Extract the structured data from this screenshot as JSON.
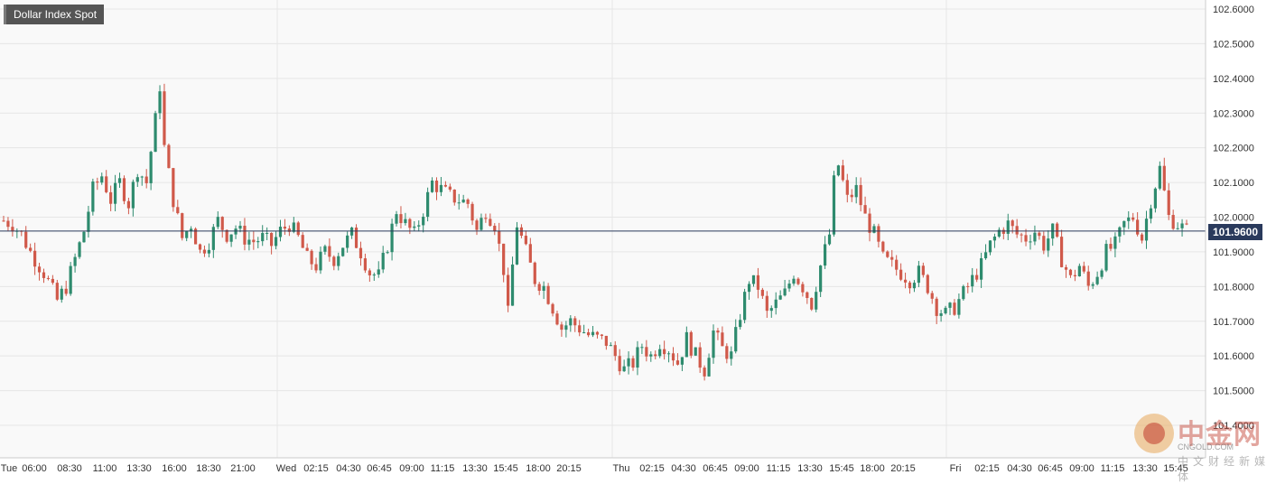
{
  "title": "Dollar Index Spot",
  "current_price": "101.9600",
  "watermark": {
    "brand": "中金网",
    "domain": "CNGOLD.COM",
    "tagline": "中文财经新媒体"
  },
  "colors": {
    "up": "#2e8b6e",
    "down": "#d0594a",
    "price_line": "#2a3a5c",
    "grid": "#e6e6e6",
    "background": "#f9f9f9"
  },
  "chart_data": {
    "type": "candlestick",
    "title": "Dollar Index Spot",
    "ylim": [
      101.4,
      102.6
    ],
    "y_ticks": [
      "102.6000",
      "102.5000",
      "102.4000",
      "102.3000",
      "102.2000",
      "102.1000",
      "102.0000",
      "101.9000",
      "101.8000",
      "101.7000",
      "101.6000",
      "101.5000",
      "101.4000"
    ],
    "x_tick_labels": [
      "Tue",
      "06:00",
      "08:30",
      "11:00",
      "13:30",
      "16:00",
      "18:30",
      "21:00",
      "Wed",
      "02:15",
      "04:30",
      "06:45",
      "09:00",
      "11:15",
      "13:30",
      "15:45",
      "18:00",
      "20:15",
      "Thu",
      "02:15",
      "04:30",
      "06:45",
      "09:00",
      "11:15",
      "13:30",
      "15:45",
      "18:00",
      "20:15",
      "Fri",
      "02:15",
      "04:30",
      "06:45",
      "09:00",
      "11:15",
      "13:30",
      "15:45"
    ],
    "day_separators": [
      "Wed",
      "Thu",
      "Fri"
    ],
    "current_price": 101.96,
    "grid": true,
    "close_path": [
      [
        0,
        101.99
      ],
      [
        2,
        101.98
      ],
      [
        4,
        101.95
      ],
      [
        6,
        101.9
      ],
      [
        9,
        101.84
      ],
      [
        12,
        101.76
      ],
      [
        14,
        101.8
      ],
      [
        16,
        101.88
      ],
      [
        18,
        101.96
      ],
      [
        20,
        102.08
      ],
      [
        22,
        102.12
      ],
      [
        24,
        102.05
      ],
      [
        26,
        102.1
      ],
      [
        28,
        102.04
      ],
      [
        30,
        102.14
      ],
      [
        32,
        102.1
      ],
      [
        34,
        102.28
      ],
      [
        35,
        102.38
      ],
      [
        36,
        102.2
      ],
      [
        38,
        102.05
      ],
      [
        40,
        101.94
      ],
      [
        42,
        101.98
      ],
      [
        44,
        101.9
      ],
      [
        46,
        101.93
      ],
      [
        48,
        101.99
      ],
      [
        50,
        101.95
      ],
      [
        52,
        101.97
      ],
      [
        54,
        101.94
      ],
      [
        56,
        101.93
      ],
      [
        58,
        101.94
      ],
      [
        60,
        101.92
      ],
      [
        62,
        101.96
      ],
      [
        64,
        101.98
      ],
      [
        66,
        101.94
      ],
      [
        68,
        101.88
      ],
      [
        70,
        101.86
      ],
      [
        72,
        101.9
      ],
      [
        74,
        101.88
      ],
      [
        76,
        101.92
      ],
      [
        78,
        101.95
      ],
      [
        80,
        101.9
      ],
      [
        82,
        101.84
      ],
      [
        84,
        101.83
      ],
      [
        86,
        101.92
      ],
      [
        88,
        102.02
      ],
      [
        90,
        101.98
      ],
      [
        92,
        101.95
      ],
      [
        94,
        102.02
      ],
      [
        96,
        102.1
      ],
      [
        98,
        102.08
      ],
      [
        100,
        102.06
      ],
      [
        102,
        102.05
      ],
      [
        104,
        102.04
      ],
      [
        106,
        101.96
      ],
      [
        108,
        102.02
      ],
      [
        110,
        101.98
      ],
      [
        112,
        101.85
      ],
      [
        113,
        101.72
      ],
      [
        114,
        101.86
      ],
      [
        115,
        101.98
      ],
      [
        117,
        101.9
      ],
      [
        119,
        101.82
      ],
      [
        121,
        101.8
      ],
      [
        123,
        101.74
      ],
      [
        125,
        101.68
      ],
      [
        127,
        101.7
      ],
      [
        129,
        101.68
      ],
      [
        131,
        101.66
      ],
      [
        133,
        101.65
      ],
      [
        135,
        101.64
      ],
      [
        137,
        101.6
      ],
      [
        139,
        101.56
      ],
      [
        141,
        101.58
      ],
      [
        143,
        101.63
      ],
      [
        145,
        101.6
      ],
      [
        147,
        101.64
      ],
      [
        149,
        101.62
      ],
      [
        151,
        101.58
      ],
      [
        153,
        101.65
      ],
      [
        155,
        101.6
      ],
      [
        157,
        101.56
      ],
      [
        159,
        101.67
      ],
      [
        161,
        101.62
      ],
      [
        163,
        101.6
      ],
      [
        165,
        101.72
      ],
      [
        167,
        101.82
      ],
      [
        169,
        101.8
      ],
      [
        171,
        101.72
      ],
      [
        173,
        101.75
      ],
      [
        175,
        101.78
      ],
      [
        177,
        101.84
      ],
      [
        179,
        101.8
      ],
      [
        181,
        101.75
      ],
      [
        183,
        101.86
      ],
      [
        185,
        101.95
      ],
      [
        186,
        102.1
      ],
      [
        187,
        102.15
      ],
      [
        189,
        102.05
      ],
      [
        191,
        102.08
      ],
      [
        193,
        102.0
      ],
      [
        195,
        101.95
      ],
      [
        197,
        101.88
      ],
      [
        199,
        101.86
      ],
      [
        201,
        101.84
      ],
      [
        203,
        101.82
      ],
      [
        205,
        101.84
      ],
      [
        207,
        101.8
      ],
      [
        209,
        101.74
      ],
      [
        211,
        101.72
      ],
      [
        213,
        101.74
      ],
      [
        215,
        101.78
      ],
      [
        217,
        101.82
      ],
      [
        219,
        101.86
      ],
      [
        221,
        101.92
      ],
      [
        223,
        101.96
      ],
      [
        225,
        101.98
      ],
      [
        227,
        101.95
      ],
      [
        229,
        101.94
      ],
      [
        231,
        101.96
      ],
      [
        233,
        101.92
      ],
      [
        235,
        101.96
      ],
      [
        237,
        101.88
      ],
      [
        239,
        101.82
      ],
      [
        241,
        101.86
      ],
      [
        243,
        101.8
      ],
      [
        245,
        101.84
      ],
      [
        247,
        101.9
      ],
      [
        249,
        101.92
      ],
      [
        251,
        101.98
      ],
      [
        253,
        102.0
      ],
      [
        255,
        101.94
      ],
      [
        257,
        102.05
      ],
      [
        259,
        102.14
      ],
      [
        261,
        102.0
      ],
      [
        263,
        101.98
      ],
      [
        265,
        101.96
      ]
    ]
  }
}
